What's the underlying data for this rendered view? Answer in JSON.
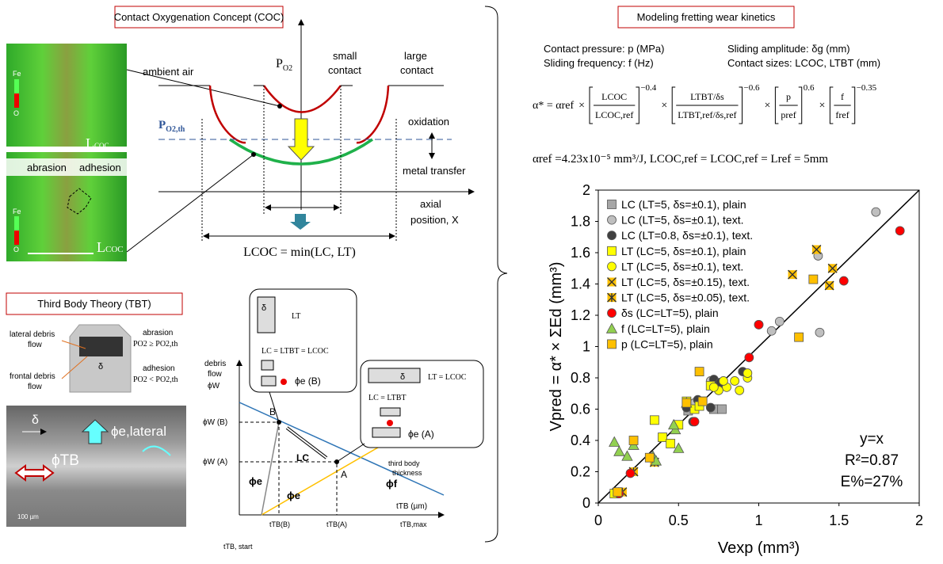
{
  "coc": {
    "title": "Contact Oxygenation Concept (COC)",
    "fe": "Fe",
    "o": "O",
    "lcoc_main": "L",
    "lcoc_sub": "COC",
    "abrasion": "abrasion",
    "adhesion": "adhesion",
    "po2_main": "P",
    "po2_sub": "O2",
    "po2th_main": "P",
    "po2th_sub": "O2,th",
    "ambient": "ambient air",
    "small": [
      "small",
      "contact"
    ],
    "large": [
      "large",
      "contact"
    ],
    "oxidation": "oxidation",
    "metal": "metal transfer",
    "axial": [
      "axial",
      "position, X"
    ],
    "formula": "LCOC = min(LC, LT)"
  },
  "tbt": {
    "title": "Third Body Theory (TBT)",
    "lateral": [
      "lateral debris",
      "flow"
    ],
    "frontal": [
      "frontal debris",
      "flow"
    ],
    "abrasion": "abrasion",
    "abrasion_cond": "PO2 ≥ PO2,th",
    "adhesion": "adhesion",
    "adhesion_cond": "PO2 < PO2,th",
    "delta": "δ",
    "phi_lat": "ϕe,lateral",
    "phi_tb": "ϕTB",
    "scale": "100 µm",
    "debris": [
      "debris",
      "flow",
      "ϕW"
    ],
    "phiwb": "ϕW (B)",
    "phiwa": "ϕW (A)",
    "B": "B",
    "A": "A",
    "phie": "ϕe",
    "phif": "ϕf",
    "lc": "LC",
    "third": [
      "third body",
      "thickness",
      "tTB (µm)"
    ],
    "tstart": "tTB, start",
    "tb": "tTB(B)",
    "ta": "tTB(A)",
    "tmax": "tTB,max",
    "box1": {
      "lt": "LT",
      "eq": "LC = LTBT = LCOC",
      "phi": "ϕe (B)"
    },
    "box2": {
      "lt": "LT = LCOC",
      "eq": "LC = LTBT",
      "phi": "ϕe (A)"
    }
  },
  "model": {
    "title": "Modeling fretting wear kinetics",
    "params": [
      "Contact pressure: p (MPa)",
      "Sliding amplitude: δg (mm)",
      "Sliding frequency: f (Hz)",
      "Contact sizes: LCOC, LTBT (mm)"
    ],
    "eq_lead": "α* = αref",
    "times": "×",
    "terms": [
      {
        "num": "LCOC",
        "den": "LCOC,ref",
        "exp": "−0.4"
      },
      {
        "num": "LTBT/δs",
        "den": "LTBT,ref/δs,ref",
        "exp": "−0.6"
      },
      {
        "num": "p",
        "den": "pref",
        "exp": "0.6"
      },
      {
        "num": "f",
        "den": "fref",
        "exp": "−0.35"
      }
    ],
    "ref": "αref =4.23x10⁻⁵ mm³/J, LCOC,ref = LCOC,ref = Lref = 5mm"
  },
  "chart_data": {
    "type": "scatter",
    "x_label": "Vexp  (mm³)",
    "y_label": "Vpred = α* × ΣEd  (mm³)",
    "xlim": [
      0,
      2
    ],
    "ylim": [
      0,
      2
    ],
    "xticks": [
      0,
      0.5,
      1,
      1.5,
      2
    ],
    "yticks": [
      0,
      0.2,
      0.4,
      0.6,
      0.8,
      1,
      1.2,
      1.4,
      1.6,
      1.8,
      2
    ],
    "annotations": [
      "y=x",
      "R²=0.87",
      "E%=27%"
    ],
    "series": [
      {
        "name": "LC (LT=5, δs=±0.1), plain",
        "color": "#a6a6a6",
        "marker": "square",
        "x": [
          0.56,
          0.6,
          0.65,
          0.72,
          0.77
        ],
        "values": [
          0.59,
          0.62,
          0.65,
          0.6,
          0.6
        ]
      },
      {
        "name": "LC (LT=5, δs=±0.1), text.",
        "color": "#bfbfbf",
        "marker": "circle",
        "x": [
          1.73,
          1.37,
          1.13,
          1.08,
          1.38,
          1.0,
          0.6,
          0.7
        ],
        "values": [
          1.86,
          1.58,
          1.16,
          1.1,
          1.09,
          1.14,
          0.64,
          0.78
        ]
      },
      {
        "name": "LC (LT=0.8, δs=±0.1), text.",
        "color": "#404040",
        "marker": "circle",
        "x": [
          0.72,
          0.76,
          0.9,
          0.7,
          0.59,
          0.55,
          0.62
        ],
        "values": [
          0.79,
          0.77,
          0.84,
          0.61,
          0.52,
          0.61,
          0.66
        ]
      },
      {
        "name": "LT (LC=5, δs=±0.1), plain",
        "color": "#ffff00",
        "marker": "square",
        "x": [
          0.1,
          0.35,
          0.4,
          0.45,
          0.55,
          0.6,
          0.63,
          0.7,
          0.5
        ],
        "values": [
          0.06,
          0.53,
          0.42,
          0.38,
          0.65,
          0.6,
          0.62,
          0.75,
          0.5
        ]
      },
      {
        "name": "LT (LC=5, δs=±0.1), text.",
        "color": "#ffff00",
        "marker": "circle",
        "x": [
          0.93,
          0.93,
          0.88,
          0.8,
          0.75,
          0.72,
          0.78,
          0.85
        ],
        "values": [
          0.8,
          0.83,
          0.72,
          0.74,
          0.72,
          0.74,
          0.78,
          0.78
        ]
      },
      {
        "name": "LT (LC=5, δs=±0.15), text.",
        "color": "#ffc000",
        "marker": "x",
        "x": [
          1.36,
          1.46,
          1.21,
          1.44
        ],
        "values": [
          1.62,
          1.5,
          1.46,
          1.39
        ]
      },
      {
        "name": "LT (LC=5, δs=±0.05), text.",
        "color": "#ffc000",
        "marker": "star",
        "x": [
          0.35,
          0.22,
          0.15
        ],
        "values": [
          0.26,
          0.2,
          0.07
        ]
      },
      {
        "name": "δs (LC=LT=5), plain",
        "color": "#ff0000",
        "marker": "circle",
        "x": [
          0.13,
          0.2,
          0.94,
          1.0,
          1.53,
          1.88,
          0.6
        ],
        "values": [
          0.06,
          0.19,
          0.93,
          1.14,
          1.42,
          1.74,
          0.52
        ]
      },
      {
        "name": "f  (LC=LT=5), plain",
        "color": "#92d050",
        "marker": "triangle",
        "x": [
          0.1,
          0.13,
          0.18,
          0.22,
          0.34,
          0.36,
          0.48,
          0.5,
          0.47,
          0.55
        ],
        "values": [
          0.39,
          0.33,
          0.3,
          0.37,
          0.3,
          0.27,
          0.47,
          0.35,
          0.5,
          0.64
        ]
      },
      {
        "name": "p  (LC=LT=5), plain",
        "color": "#ffc000",
        "marker": "square",
        "x": [
          0.22,
          0.32,
          0.55,
          0.63,
          0.65,
          1.25,
          1.34,
          0.12
        ],
        "values": [
          0.4,
          0.29,
          0.64,
          0.84,
          0.65,
          1.06,
          1.43,
          0.07
        ]
      }
    ]
  }
}
